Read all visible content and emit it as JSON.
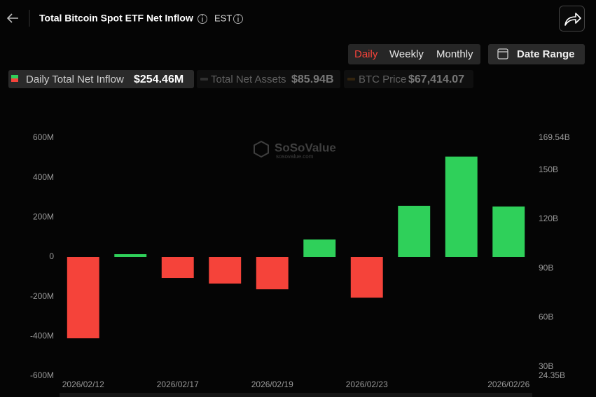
{
  "header": {
    "title": "Total Bitcoin Spot ETF Net Inflow",
    "timezone": "EST"
  },
  "controls": {
    "periods": [
      "Daily",
      "Weekly",
      "Monthly"
    ],
    "selected": 0,
    "date_range": "Date Range"
  },
  "legend_chips": [
    {
      "name": "Daily Total Net Inflow",
      "value": "$254.46M",
      "active": true
    },
    {
      "name": "Total Net Assets",
      "value": "$85.94B",
      "active": false
    },
    {
      "name": "BTC Price",
      "value": "$67,414.07",
      "active": false
    }
  ],
  "chart_data": {
    "type": "bar",
    "watermark": "SoSoValue",
    "watermark_url": "sosovalue.com",
    "categories": [
      "2026/02/12",
      null,
      "2026/02/17",
      null,
      "2026/02/19",
      null,
      "2026/02/23",
      null,
      null,
      "2026/02/26"
    ],
    "values": [
      -410,
      14,
      -106,
      -134,
      -163,
      88,
      -205,
      258,
      506,
      254.46
    ],
    "positive_color": "#2fd05a",
    "negative_color": "#f5433a",
    "ylim": [
      -600,
      600
    ],
    "yticks": [
      {
        "value": -600,
        "label": "-600M"
      },
      {
        "value": -400,
        "label": "-400M"
      },
      {
        "value": -200,
        "label": "-200M"
      },
      0,
      {
        "value": 200,
        "label": "200M"
      },
      {
        "value": 400,
        "label": "400M"
      },
      {
        "value": 600,
        "label": "600M"
      }
    ],
    "y2lim": [
      24.35,
      169.54
    ],
    "y2ticks": [
      {
        "value": 24.35,
        "label": "24.35B"
      },
      {
        "value": 30,
        "label": "30B"
      },
      {
        "value": 60,
        "label": "60B"
      },
      {
        "value": 90,
        "label": "90B"
      },
      {
        "value": 120,
        "label": "120B"
      },
      {
        "value": 150,
        "label": "150B"
      },
      {
        "value": 169.54,
        "label": "169.54B"
      }
    ],
    "grid": false
  }
}
